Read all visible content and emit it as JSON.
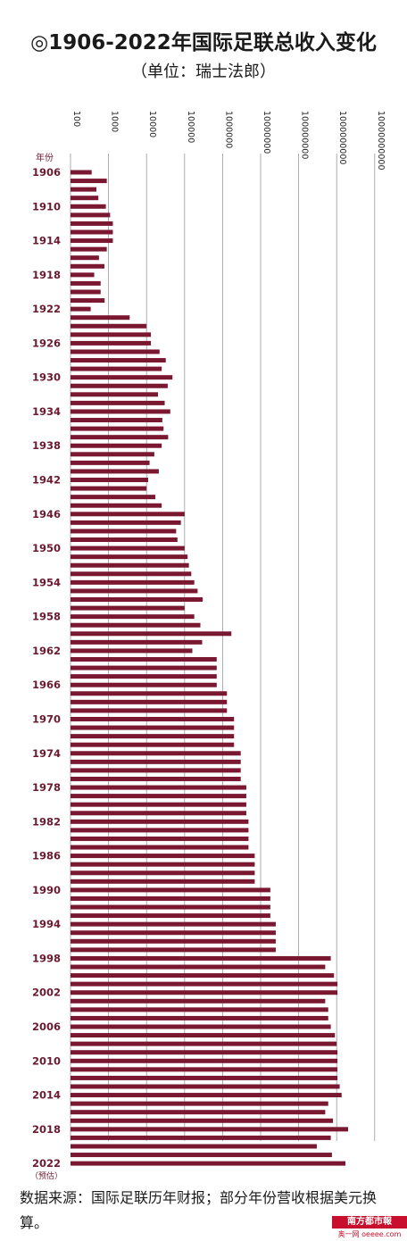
{
  "title": "◎1906-2022年国际足联总收入变化",
  "subtitle": "（单位：瑞士法郎）",
  "footnote": "数据来源：国际足联历年财报；部分年份营收根据美元换算。",
  "logo": {
    "name": "南方都市報",
    "sub": "奥一网 oeeee.com"
  },
  "colors": {
    "bar": "#7a1832",
    "grid": "#9a9a9a",
    "year_label": "#6b1a2f"
  },
  "chart_data": {
    "type": "bar",
    "orientation": "horizontal",
    "title": "◎1906-2022年国际足联总收入变化",
    "subtitle": "（单位：瑞士法郎）",
    "ylabel": "年份",
    "xscale": "log",
    "xlim": [
      100,
      10000000000
    ],
    "x_ticks": [
      "100",
      "1000",
      "10000",
      "100000",
      "1000000",
      "10000000",
      "100000000",
      "1000000000",
      "10000000000"
    ],
    "year_ticks": [
      "1906",
      "1910",
      "1914",
      "1918",
      "1922",
      "1926",
      "1930",
      "1934",
      "1938",
      "1942",
      "1946",
      "1950",
      "1954",
      "1958",
      "1962",
      "1966",
      "1970",
      "1974",
      "1978",
      "1982",
      "1986",
      "1990",
      "1994",
      "1998",
      "2002",
      "2006",
      "2010",
      "2014",
      "2018",
      "2022"
    ],
    "year_tick_note": "（预估）",
    "categories": [
      1906,
      1907,
      1908,
      1909,
      1910,
      1911,
      1912,
      1913,
      1914,
      1915,
      1916,
      1917,
      1918,
      1919,
      1920,
      1921,
      1922,
      1923,
      1924,
      1925,
      1926,
      1927,
      1928,
      1929,
      1930,
      1931,
      1932,
      1933,
      1934,
      1935,
      1936,
      1937,
      1938,
      1939,
      1940,
      1941,
      1942,
      1943,
      1944,
      1945,
      1946,
      1947,
      1948,
      1949,
      1950,
      1951,
      1952,
      1953,
      1954,
      1955,
      1956,
      1957,
      1958,
      1959,
      1960,
      1961,
      1962,
      1963,
      1964,
      1965,
      1966,
      1967,
      1968,
      1969,
      1970,
      1971,
      1972,
      1973,
      1974,
      1975,
      1976,
      1977,
      1978,
      1979,
      1980,
      1981,
      1982,
      1983,
      1984,
      1985,
      1986,
      1987,
      1988,
      1989,
      1990,
      1991,
      1992,
      1993,
      1994,
      1995,
      1996,
      1997,
      1998,
      1999,
      2000,
      2001,
      2002,
      2003,
      2004,
      2005,
      2006,
      2007,
      2008,
      2009,
      2010,
      2011,
      2012,
      2013,
      2014,
      2015,
      2016,
      2017,
      2018,
      2019,
      2020,
      2021,
      2022
    ],
    "values": [
      360,
      900,
      480,
      540,
      850,
      1100,
      1300,
      1300,
      1300,
      900,
      560,
      780,
      420,
      620,
      620,
      790,
      340,
      3600,
      10000,
      13000,
      13000,
      22000,
      32000,
      25000,
      48000,
      36000,
      20000,
      30000,
      42000,
      26000,
      28000,
      37000,
      25000,
      16000,
      12000,
      21000,
      11000,
      10000,
      17000,
      25000,
      100000,
      80000,
      60000,
      65000,
      100000,
      120000,
      130000,
      150000,
      180000,
      220000,
      300000,
      100000,
      180000,
      260000,
      1700000,
      290000,
      160000,
      700000,
      700000,
      700000,
      700000,
      1300000,
      1300000,
      1300000,
      2000000,
      2000000,
      2000000,
      2000000,
      3000000,
      3000000,
      3000000,
      3000000,
      4200000,
      4200000,
      4200000,
      4200000,
      4800000,
      4800000,
      4800000,
      4800000,
      7000000,
      7000000,
      7000000,
      7000000,
      18000000,
      18000000,
      18000000,
      18000000,
      25000000,
      25000000,
      25000000,
      25000000,
      700000000,
      500000000,
      850000000,
      1050000000,
      1050000000,
      500000000,
      600000000,
      600000000,
      700000000,
      900000000,
      1000000000,
      1050000000,
      1050000000,
      1050000000,
      1050000000,
      1200000000,
      1350000000,
      600000000,
      500000000,
      800000000,
      2000000000,
      700000000,
      300000000,
      750000000,
      1700000000
    ]
  }
}
